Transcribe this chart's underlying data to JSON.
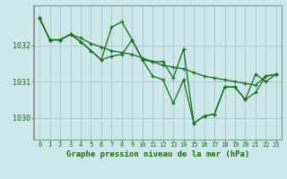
{
  "bg_color": "#cce8ea",
  "grid_color": "#aacccc",
  "line_color": "#1a6b1a",
  "xlabel": "Graphe pression niveau de la mer (hPa)",
  "xlim": [
    -0.5,
    23.5
  ],
  "ylim": [
    1029.4,
    1033.1
  ],
  "yticks": [
    1030,
    1031,
    1032
  ],
  "xticks": [
    0,
    1,
    2,
    3,
    4,
    5,
    6,
    7,
    8,
    9,
    10,
    11,
    12,
    13,
    14,
    15,
    16,
    17,
    18,
    19,
    20,
    21,
    22,
    23
  ],
  "series": [
    [
      1032.75,
      1032.15,
      1032.15,
      1032.3,
      1032.2,
      1032.05,
      1031.95,
      1031.85,
      1031.8,
      1031.75,
      1031.65,
      1031.55,
      1031.45,
      1031.4,
      1031.35,
      1031.25,
      1031.15,
      1031.1,
      1031.05,
      1031.0,
      1030.95,
      1030.9,
      1031.15,
      1031.2
    ],
    [
      1032.75,
      1032.15,
      1032.15,
      1032.3,
      1032.1,
      1031.85,
      1031.6,
      1032.5,
      1032.65,
      1032.15,
      1031.6,
      1031.15,
      1031.05,
      1030.4,
      1031.05,
      1029.85,
      1030.05,
      1030.1,
      1030.85,
      1030.85,
      1030.5,
      1030.7,
      1031.15,
      1031.2
    ],
    [
      1032.75,
      1032.15,
      1032.15,
      1032.3,
      1032.1,
      1031.85,
      1031.6,
      1031.7,
      1031.75,
      1032.15,
      1031.6,
      1031.55,
      1031.55,
      1031.1,
      1031.9,
      1029.85,
      1030.05,
      1030.1,
      1030.85,
      1030.85,
      1030.5,
      1031.2,
      1031.0,
      1031.2
    ]
  ]
}
